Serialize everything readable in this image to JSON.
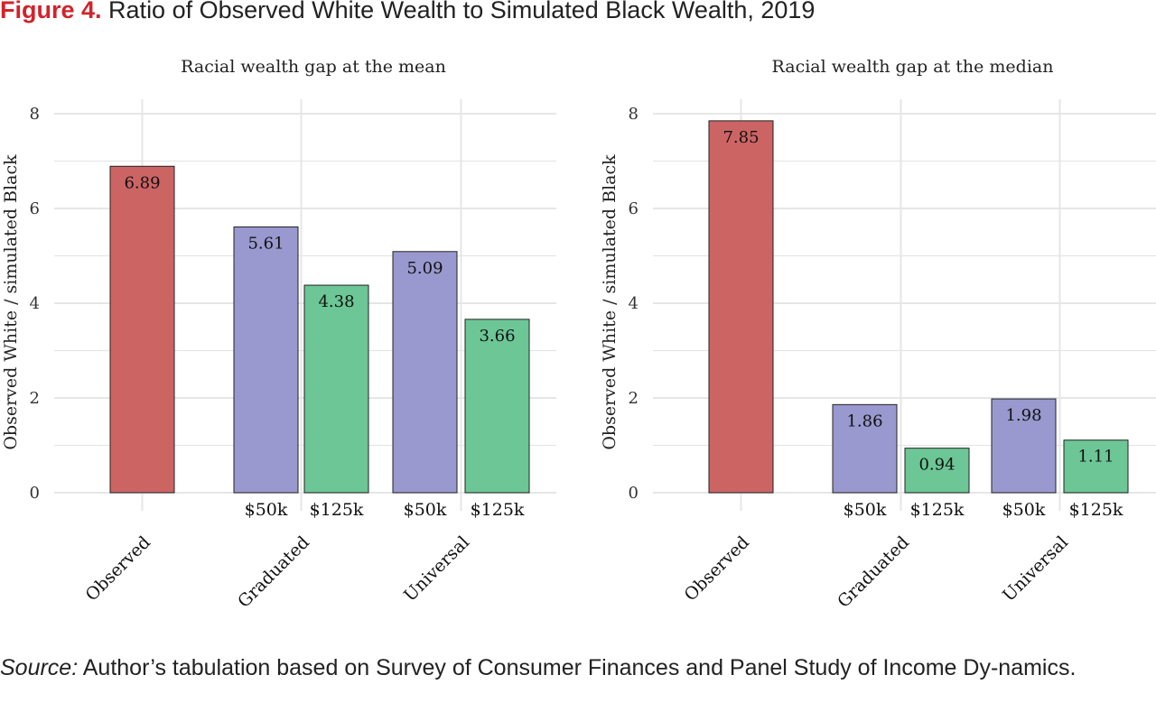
{
  "figure": {
    "label": "Figure 4.",
    "title": "Ratio of Observed White Wealth to Simulated Black Wealth, 2019"
  },
  "source": {
    "label": "Source:",
    "text": "Author’s tabulation based on Survey of Consumer Finances and Panel Study of Income Dy-namics."
  },
  "colors": {
    "observed": "#cd6464",
    "fifty_k": "#9999cf",
    "one_twenty_five_k": "#6cc695",
    "grid": "#e6e6e6"
  },
  "chart_data": [
    {
      "type": "bar",
      "title": "Racial wealth gap at the mean",
      "ylabel": "Observed White / simulated Black",
      "ylim": [
        0,
        8
      ],
      "yticks": [
        0,
        2,
        4,
        6,
        8
      ],
      "categories": [
        "Observed",
        "Graduated",
        "Universal"
      ],
      "bars": [
        {
          "category": "Observed",
          "sublabel": "",
          "value": 6.89,
          "label": "6.89",
          "color_key": "observed"
        },
        {
          "category": "Graduated",
          "sublabel": "$50k",
          "value": 5.61,
          "label": "5.61",
          "color_key": "fifty_k"
        },
        {
          "category": "Graduated",
          "sublabel": "$125k",
          "value": 4.38,
          "label": "4.38",
          "color_key": "one_twenty_five_k"
        },
        {
          "category": "Universal",
          "sublabel": "$50k",
          "value": 5.09,
          "label": "5.09",
          "color_key": "fifty_k"
        },
        {
          "category": "Universal",
          "sublabel": "$125k",
          "value": 3.66,
          "label": "3.66",
          "color_key": "one_twenty_five_k"
        }
      ],
      "grid": true
    },
    {
      "type": "bar",
      "title": "Racial wealth gap at the median",
      "ylabel": "Observed White / simulated Black",
      "ylim": [
        0,
        8
      ],
      "yticks": [
        0,
        2,
        4,
        6,
        8
      ],
      "categories": [
        "Observed",
        "Graduated",
        "Universal"
      ],
      "bars": [
        {
          "category": "Observed",
          "sublabel": "",
          "value": 7.85,
          "label": "7.85",
          "color_key": "observed"
        },
        {
          "category": "Graduated",
          "sublabel": "$50k",
          "value": 1.86,
          "label": "1.86",
          "color_key": "fifty_k"
        },
        {
          "category": "Graduated",
          "sublabel": "$125k",
          "value": 0.94,
          "label": "0.94",
          "color_key": "one_twenty_five_k"
        },
        {
          "category": "Universal",
          "sublabel": "$50k",
          "value": 1.98,
          "label": "1.98",
          "color_key": "fifty_k"
        },
        {
          "category": "Universal",
          "sublabel": "$125k",
          "value": 1.11,
          "label": "1.11",
          "color_key": "one_twenty_five_k"
        }
      ],
      "grid": true
    }
  ]
}
